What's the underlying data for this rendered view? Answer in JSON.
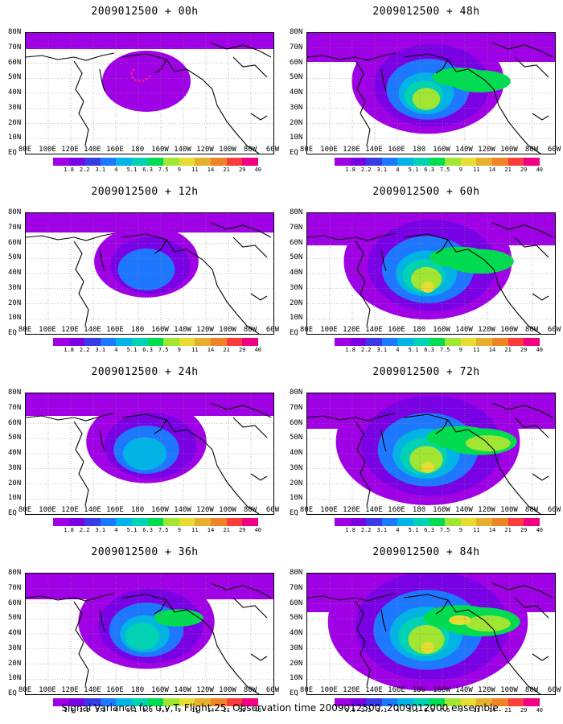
{
  "caption": "Signal Variance for u,v,T. Flight 25. Observation time 2009012500. 2009012000 ensemble.",
  "lat_labels": [
    "80N",
    "70N",
    "60N",
    "50N",
    "40N",
    "30N",
    "20N",
    "10N",
    "EQ"
  ],
  "lon_labels": [
    "80E",
    "100E",
    "120E",
    "140E",
    "160E",
    "180",
    "160W",
    "140W",
    "120W",
    "100W",
    "80W",
    "60W"
  ],
  "colorbar": {
    "labels": [
      "1.8",
      "2.2",
      "3.1",
      "4",
      "5.1",
      "6.3",
      "7.5",
      "9",
      "11",
      "14",
      "21",
      "29",
      "40"
    ],
    "labels_last": [
      "1.6",
      "2.2",
      "3.1",
      "4",
      "5.1",
      "6.3",
      "7.5",
      "9",
      "11",
      "14",
      "21",
      "29",
      "40"
    ],
    "colors": [
      "#a000e6",
      "#7a00e6",
      "#3a3ae6",
      "#1e78ff",
      "#00b4e6",
      "#00d2b4",
      "#00dc50",
      "#a0e632",
      "#e6dc32",
      "#e6af2d",
      "#f08228",
      "#fa3c3c",
      "#f00082"
    ]
  },
  "panels": [
    {
      "title": "2009012500 + 00h",
      "level": 0
    },
    {
      "title": "2009012500 + 12h",
      "level": 1
    },
    {
      "title": "2009012500 + 24h",
      "level": 2
    },
    {
      "title": "2009012500 + 36h",
      "level": 3
    },
    {
      "title": "2009012500 + 48h",
      "level": 4
    },
    {
      "title": "2009012500 + 60h",
      "level": 5
    },
    {
      "title": "2009012500 + 72h",
      "level": 6
    },
    {
      "title": "2009012500 + 84h",
      "level": 7
    }
  ]
}
